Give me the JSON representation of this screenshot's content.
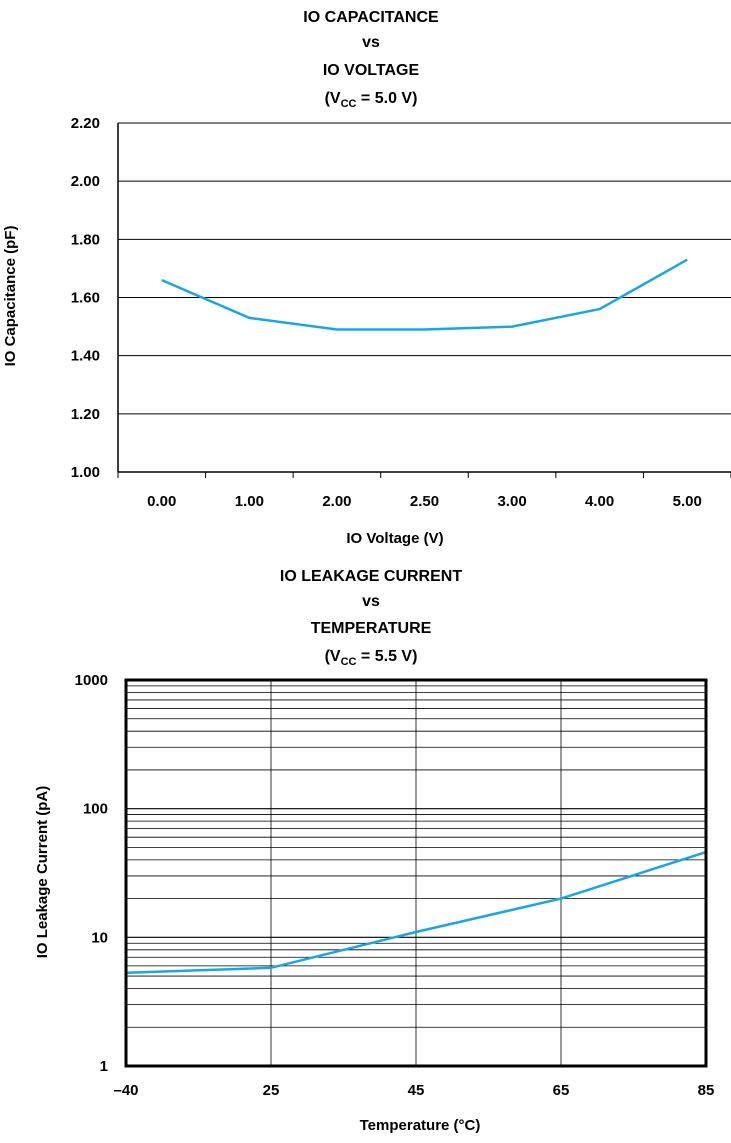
{
  "chart_data": [
    {
      "type": "line",
      "title_lines": [
        "IO CAPACITANCE",
        "vs",
        "IO VOLTAGE"
      ],
      "condition": {
        "prefix": "(V",
        "sub": "CC",
        "suffix": " = 5.0 V)"
      },
      "xlabel": "IO  Voltage (V)",
      "ylabel": "IO Capacitance (pF)",
      "categories": [
        "0.00",
        "1.00",
        "2.00",
        "2.50",
        "3.00",
        "4.00",
        "5.00"
      ],
      "values": [
        1.66,
        1.53,
        1.49,
        1.49,
        1.5,
        1.56,
        1.73
      ],
      "yticks": [
        "1.00",
        "1.20",
        "1.40",
        "1.60",
        "1.80",
        "2.00",
        "2.20"
      ],
      "ylim": [
        1.0,
        2.2
      ],
      "grid": "horizontal",
      "line_color": "#1ba6e1"
    },
    {
      "type": "line",
      "title_lines": [
        "IO LEAKAGE CURRENT",
        "vs",
        "TEMPERATURE"
      ],
      "condition": {
        "prefix": "(V",
        "sub": "CC",
        "suffix": " = 5.5 V)"
      },
      "xlabel": "Temperature (°C)",
      "ylabel": "IO Leakage Current (pA)",
      "x": [
        -40,
        25,
        45,
        65,
        85
      ],
      "values": [
        5.3,
        5.8,
        11,
        20,
        46
      ],
      "xticks": [
        "–40",
        "25",
        "45",
        "65",
        "85"
      ],
      "yticks": [
        "1",
        "10",
        "100",
        "1000"
      ],
      "ylim": [
        1,
        1000
      ],
      "yscale": "log",
      "grid": "both",
      "line_color": "#1ba6e1"
    }
  ]
}
